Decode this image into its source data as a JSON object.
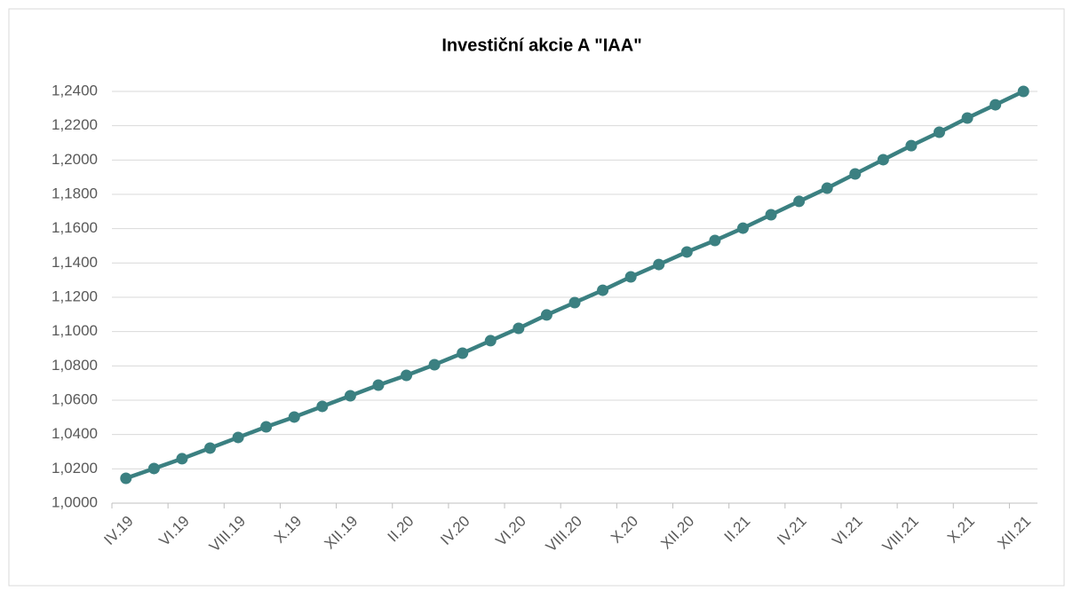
{
  "chart_data": {
    "type": "line",
    "title": "Investiční akcie A \"IAA\"",
    "categories": [
      "IV.19",
      null,
      "VI.19",
      null,
      "VIII.19",
      null,
      "X.19",
      null,
      "XII.19",
      null,
      "II.20",
      null,
      "IV.20",
      null,
      "VI.20",
      null,
      "VIII.20",
      null,
      "X.20",
      null,
      "XII.20",
      null,
      "II.21",
      null,
      "IV.21",
      null,
      "VI.21",
      null,
      "VIII.21",
      null,
      "X.21",
      null,
      "XII.21"
    ],
    "series": [
      {
        "name": "IAA",
        "color": "#3b8081",
        "values": [
          1.0145,
          1.0202,
          1.0259,
          1.0321,
          1.0383,
          1.0445,
          1.0502,
          1.0564,
          1.0626,
          1.0688,
          1.0745,
          1.0807,
          1.0874,
          1.0947,
          1.1019,
          1.1097,
          1.1169,
          1.1241,
          1.1319,
          1.1391,
          1.1464,
          1.1531,
          1.1603,
          1.1681,
          1.1759,
          1.1836,
          1.1919,
          1.2002,
          1.2084,
          1.2162,
          1.2245,
          1.2322,
          1.24
        ]
      }
    ],
    "ylim": [
      1.0,
      1.24
    ],
    "yticks": [
      {
        "value": 1.0,
        "label": "1,0000"
      },
      {
        "value": 1.02,
        "label": "1,0200"
      },
      {
        "value": 1.04,
        "label": "1,0400"
      },
      {
        "value": 1.06,
        "label": "1,0600"
      },
      {
        "value": 1.08,
        "label": "1,0800"
      },
      {
        "value": 1.1,
        "label": "1,1000"
      },
      {
        "value": 1.12,
        "label": "1,1200"
      },
      {
        "value": 1.14,
        "label": "1,1400"
      },
      {
        "value": 1.16,
        "label": "1,1600"
      },
      {
        "value": 1.18,
        "label": "1,1800"
      },
      {
        "value": 1.2,
        "label": "1,2000"
      },
      {
        "value": 1.22,
        "label": "1,2200"
      },
      {
        "value": 1.24,
        "label": "1,2400"
      }
    ],
    "grid": true
  }
}
